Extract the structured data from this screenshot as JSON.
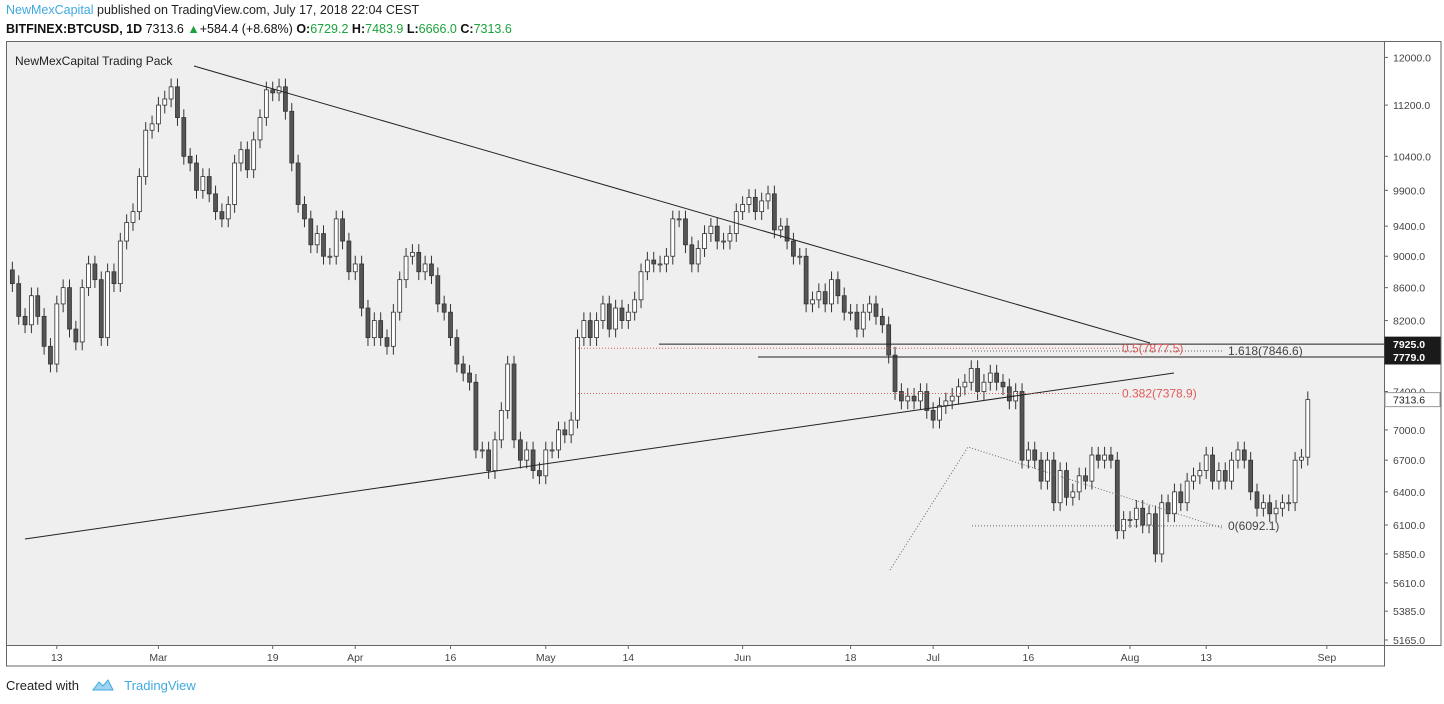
{
  "header": {
    "author": "NewMexCapital",
    "published": " published on TradingView.com, July 17, 2018 22:04 CEST",
    "symbol": "BITFINEX:BTCUSD, 1D",
    "last": "7313.6",
    "change_arrow": "▲",
    "change": "+584.4 (+8.68%)",
    "o_label": "O:",
    "o": "6729.2",
    "h_label": "H:",
    "h": "7483.9",
    "l_label": "L:",
    "l": "6666.0",
    "c_label": "C:",
    "c": "7313.6"
  },
  "footer": {
    "created_with": "Created with",
    "brand": "TradingView",
    "logo_icon": "tradingview-cloud-icon"
  },
  "colors": {
    "background": "#ffffff",
    "chart_bg": "#efefef",
    "brand": "#3fa9e0",
    "positive": "#1aa33a",
    "fib_red": "#e05a5a",
    "candle_up": "#ffffff",
    "candle_down": "#555555"
  },
  "chart_data": {
    "type": "candlestick",
    "title": "NewMexCapital Trading Pack",
    "scale": "log",
    "ylim": [
      5165,
      12200
    ],
    "y_ticks": [
      5165,
      5385,
      5610,
      5850,
      6100,
      6400,
      6700,
      7000,
      7400,
      8200,
      8600,
      9000,
      9400,
      9900,
      10400,
      11200,
      12000
    ],
    "y_tick_labels": [
      "5165.0",
      "5385.0",
      "5610.0",
      "5850.0",
      "6100.0",
      "6400.0",
      "6700.0",
      "7000.0",
      "7400.0",
      "8200.0",
      "8600.0",
      "9000.0",
      "9400.0",
      "9900.0",
      "10400.0",
      "11200.0",
      "12000.0"
    ],
    "x_ticks": [
      {
        "label": "13",
        "date": "2018-02-13"
      },
      {
        "label": "Mar",
        "date": "2018-03-01"
      },
      {
        "label": "19",
        "date": "2018-03-19"
      },
      {
        "label": "Apr",
        "date": "2018-04-01"
      },
      {
        "label": "16",
        "date": "2018-04-16"
      },
      {
        "label": "May",
        "date": "2018-05-01"
      },
      {
        "label": "14",
        "date": "2018-05-14"
      },
      {
        "label": "Jun",
        "date": "2018-06-01"
      },
      {
        "label": "18",
        "date": "2018-06-18"
      },
      {
        "label": "Jul",
        "date": "2018-07-01"
      },
      {
        "label": "16",
        "date": "2018-07-16"
      },
      {
        "label": "Aug",
        "date": "2018-08-01"
      },
      {
        "label": "13",
        "date": "2018-08-13"
      },
      {
        "label": "Sep",
        "date": "2018-09-01"
      }
    ],
    "x_range": [
      "2018-02-05",
      "2018-09-10"
    ],
    "price_labels": [
      {
        "text": "7925.0",
        "value": 7925,
        "style": "dark"
      },
      {
        "text": "7779.0",
        "value": 7779,
        "style": "dark"
      },
      {
        "text": "7313.6",
        "value": 7313.6,
        "style": "light"
      }
    ],
    "closes": [
      8650,
      8250,
      8150,
      8500,
      8250,
      7900,
      7700,
      8400,
      8600,
      8100,
      7950,
      8600,
      8900,
      8700,
      8000,
      8800,
      8650,
      9200,
      9450,
      9600,
      10100,
      10800,
      10900,
      11200,
      11300,
      11500,
      11000,
      10400,
      10300,
      9900,
      10100,
      9850,
      9600,
      9500,
      9700,
      10300,
      10500,
      10200,
      10650,
      11000,
      11450,
      11400,
      11500,
      11100,
      10300,
      9700,
      9500,
      9150,
      9300,
      9000,
      9000,
      9500,
      9200,
      8800,
      8900,
      8350,
      8000,
      8200,
      8000,
      7900,
      8300,
      8700,
      9000,
      9050,
      8800,
      8900,
      8750,
      8400,
      8300,
      8000,
      7700,
      7600,
      7500,
      6800,
      6800,
      6600,
      6900,
      7200,
      7700,
      6900,
      6700,
      6800,
      6600,
      6550,
      6800,
      6800,
      7000,
      6950,
      7100,
      8000,
      8200,
      8000,
      8200,
      8400,
      8100,
      8350,
      8200,
      8300,
      8450,
      8800,
      8950,
      8900,
      8900,
      9000,
      9500,
      9500,
      9150,
      8900,
      9100,
      9300,
      9400,
      9200,
      9200,
      9300,
      9600,
      9700,
      9800,
      9600,
      9750,
      9850,
      9350,
      9400,
      9200,
      9000,
      9000,
      8400,
      8450,
      8550,
      8400,
      8700,
      8500,
      8300,
      8300,
      8100,
      8300,
      8400,
      8250,
      8150,
      7800,
      7400,
      7300,
      7350,
      7300,
      7400,
      7200,
      7100,
      7250,
      7300,
      7350,
      7450,
      7500,
      7650,
      7400,
      7500,
      7600,
      7500,
      7450,
      7300,
      7400,
      6700,
      6800,
      6700,
      6500,
      6700,
      6300,
      6600,
      6350,
      6400,
      6550,
      6500,
      6750,
      6700,
      6750,
      6700,
      6050,
      6150,
      6150,
      6250,
      6100,
      6200,
      5850,
      6300,
      6200,
      6400,
      6300,
      6500,
      6550,
      6600,
      6750,
      6500,
      6600,
      6500,
      6700,
      6800,
      6700,
      6400,
      6250,
      6300,
      6200,
      6250,
      6300,
      6300,
      6700,
      6729.2,
      7313.6
    ]
  }
}
